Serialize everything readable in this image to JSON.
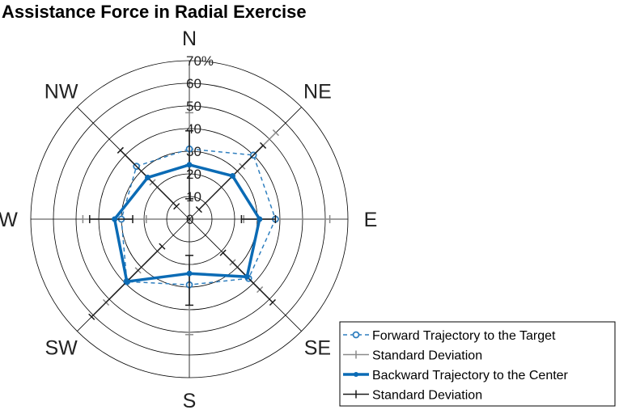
{
  "chart_data": {
    "type": "radar",
    "title": "Assistance Force in Radial Exercise",
    "directions": [
      "N",
      "NE",
      "E",
      "SE",
      "S",
      "SW",
      "W",
      "NW"
    ],
    "radial_ticks": [
      "0",
      "10",
      "20",
      "30",
      "40",
      "50",
      "60",
      "70%"
    ],
    "rlim": [
      0,
      70
    ],
    "grid": true,
    "legend_position": "bottom-right",
    "series": [
      {
        "name": "Forward Trajectory to the Target",
        "style": "dashed-circle",
        "color": "#2f7fbf",
        "values": [
          31,
          40,
          38,
          37,
          29,
          39,
          30,
          33
        ],
        "std_low": [
          24,
          33,
          24,
          27,
          20,
          32,
          19,
          23
        ],
        "std_high": [
          47,
          54,
          62,
          44,
          51,
          52,
          47,
          43
        ]
      },
      {
        "name": "Standard Deviation",
        "role": "error-bars",
        "color": "#8a8a8a"
      },
      {
        "name": "Backward Trajectory to the Center",
        "style": "solid-dot",
        "color": "#0b6bb5",
        "values": [
          24,
          27,
          31,
          36,
          24,
          39,
          33,
          26
        ],
        "std_low": [
          9,
          6,
          23,
          21,
          16,
          17,
          25,
          8
        ],
        "std_high": [
          39,
          46,
          38,
          52,
          38,
          61,
          44,
          43
        ]
      },
      {
        "name": "Standard Deviation",
        "role": "error-bars",
        "color": "#1a1a1a"
      }
    ]
  }
}
